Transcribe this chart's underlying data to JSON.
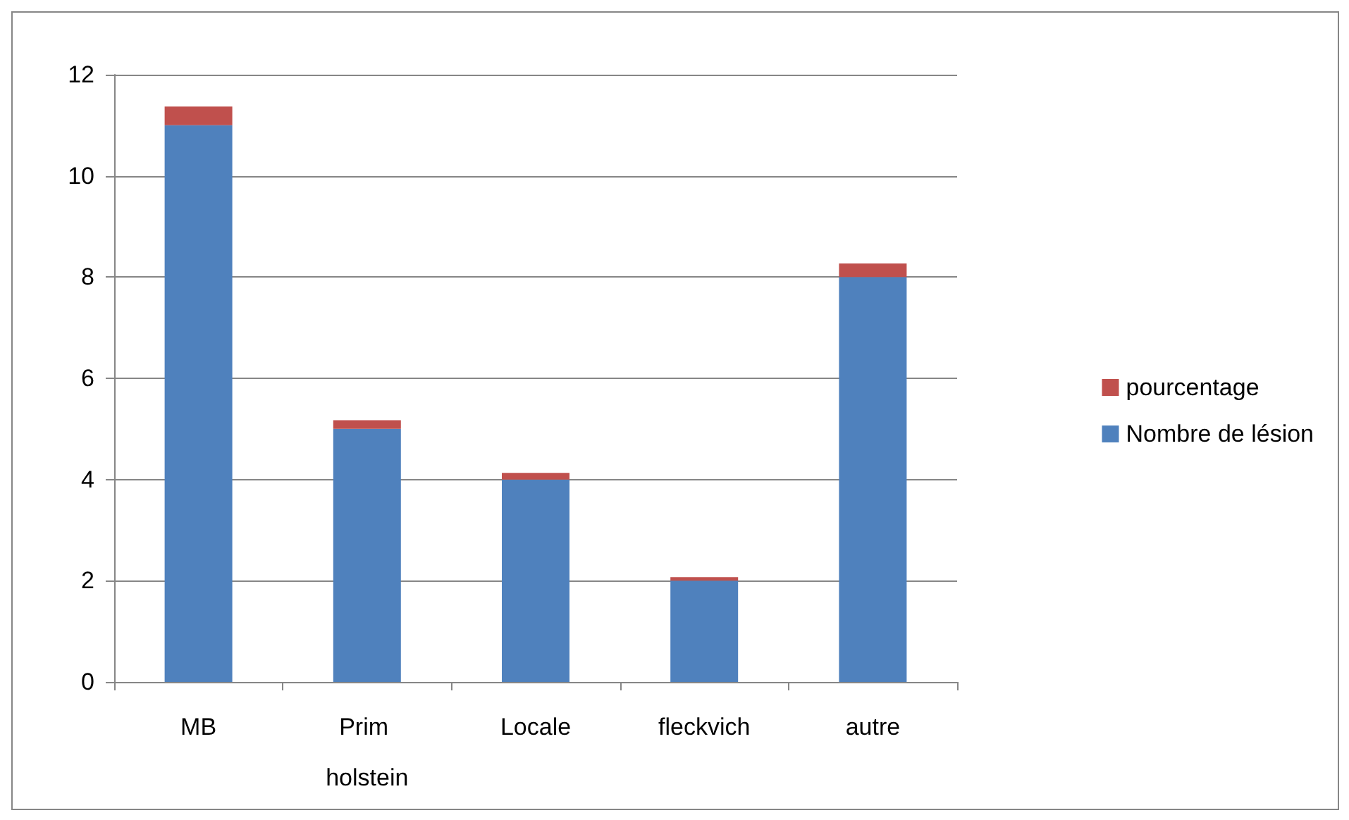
{
  "chart_data": {
    "type": "bar",
    "stacked": true,
    "categories": [
      "MB",
      "Prim holstein",
      "Locale",
      "fleckvich",
      "autre"
    ],
    "series": [
      {
        "name": "Nombre de lésion",
        "color": "#4f81bd",
        "values": [
          11,
          5,
          4,
          2,
          8
        ]
      },
      {
        "name": "pourcentage",
        "color": "#c0504d",
        "values": [
          0.37,
          0.17,
          0.13,
          0.07,
          0.27
        ]
      }
    ],
    "ylim": [
      0,
      12
    ],
    "yticks": [
      0,
      2,
      4,
      6,
      8,
      10,
      12
    ],
    "grid": "y",
    "legend": "right"
  }
}
